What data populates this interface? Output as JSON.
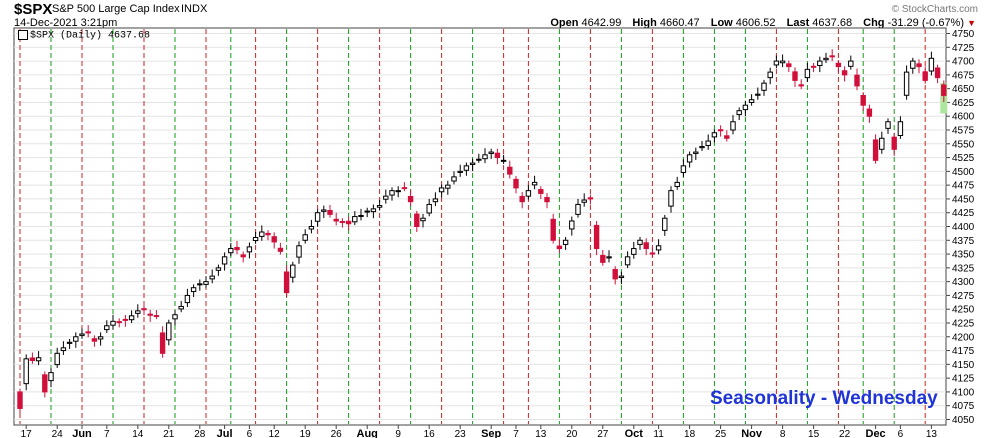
{
  "header": {
    "symbol": "$SPX",
    "name": "S&P 500 Large Cap Index",
    "exchange": "INDX",
    "datetime": "14-Dec-2021 3:21pm",
    "logo": "© StockCharts.com",
    "open_label": "Open",
    "open": "4642.99",
    "high_label": "High",
    "high": "4660.47",
    "low_label": "Low",
    "low": "4606.52",
    "last_label": "Last",
    "last": "4637.68",
    "chg_label": "Chg",
    "chg": "-31.29 (-0.67%)",
    "chg_arrow": "▼"
  },
  "legend": "$SPX (Daily) 4637.68",
  "annotation": "Seasonality - Wednesday",
  "colors": {
    "up": "#000000",
    "down": "#d0103a",
    "green_line": "#1a9a1a",
    "red_line": "#cc2222",
    "grid": "#e4e4e4",
    "highlight": "#aee6a0",
    "annotation": "#1f34d6"
  },
  "chart_data": {
    "type": "candlestick",
    "series_name": "$SPX (Daily)",
    "ylim": [
      4040,
      4760
    ],
    "y_ticks": [
      4050,
      4075,
      4100,
      4125,
      4150,
      4175,
      4200,
      4225,
      4250,
      4275,
      4300,
      4325,
      4350,
      4375,
      4400,
      4425,
      4450,
      4475,
      4500,
      4525,
      4550,
      4575,
      4600,
      4625,
      4650,
      4675,
      4700,
      4725,
      4750
    ],
    "x_ticks": [
      {
        "i": 1,
        "label": "17"
      },
      {
        "i": 6,
        "label": "24"
      },
      {
        "i": 10,
        "label": "Jun"
      },
      {
        "i": 14,
        "label": "7"
      },
      {
        "i": 19,
        "label": "14"
      },
      {
        "i": 24,
        "label": "21"
      },
      {
        "i": 29,
        "label": "28"
      },
      {
        "i": 33,
        "label": "Jul"
      },
      {
        "i": 37,
        "label": "6"
      },
      {
        "i": 41,
        "label": "12"
      },
      {
        "i": 46,
        "label": "19"
      },
      {
        "i": 51,
        "label": "26"
      },
      {
        "i": 56,
        "label": "Aug"
      },
      {
        "i": 61,
        "label": "9"
      },
      {
        "i": 66,
        "label": "16"
      },
      {
        "i": 71,
        "label": "23"
      },
      {
        "i": 76,
        "label": "Sep"
      },
      {
        "i": 80,
        "label": "7"
      },
      {
        "i": 84,
        "label": "13"
      },
      {
        "i": 89,
        "label": "20"
      },
      {
        "i": 94,
        "label": "27"
      },
      {
        "i": 99,
        "label": "Oct"
      },
      {
        "i": 103,
        "label": "11"
      },
      {
        "i": 108,
        "label": "18"
      },
      {
        "i": 113,
        "label": "25"
      },
      {
        "i": 118,
        "label": "Nov"
      },
      {
        "i": 123,
        "label": "8"
      },
      {
        "i": 128,
        "label": "15"
      },
      {
        "i": 133,
        "label": "22"
      },
      {
        "i": 138,
        "label": "Dec"
      },
      {
        "i": 142,
        "label": "6"
      },
      {
        "i": 147,
        "label": "13"
      }
    ],
    "wednesday_lines": [
      {
        "i": 0,
        "color": "red"
      },
      {
        "i": 5,
        "color": "green"
      },
      {
        "i": 10,
        "color": "red"
      },
      {
        "i": 15,
        "color": "green"
      },
      {
        "i": 20,
        "color": "red"
      },
      {
        "i": 25,
        "color": "green"
      },
      {
        "i": 30,
        "color": "red"
      },
      {
        "i": 34,
        "color": "green"
      },
      {
        "i": 38,
        "color": "red"
      },
      {
        "i": 43,
        "color": "green"
      },
      {
        "i": 48,
        "color": "red"
      },
      {
        "i": 53,
        "color": "green"
      },
      {
        "i": 58,
        "color": "red"
      },
      {
        "i": 63,
        "color": "green"
      },
      {
        "i": 68,
        "color": "red"
      },
      {
        "i": 73,
        "color": "green"
      },
      {
        "i": 78,
        "color": "red"
      },
      {
        "i": 82,
        "color": "red"
      },
      {
        "i": 87,
        "color": "green"
      },
      {
        "i": 92,
        "color": "red"
      },
      {
        "i": 97,
        "color": "green"
      },
      {
        "i": 102,
        "color": "red"
      },
      {
        "i": 107,
        "color": "green"
      },
      {
        "i": 112,
        "color": "green"
      },
      {
        "i": 117,
        "color": "green"
      },
      {
        "i": 122,
        "color": "red"
      },
      {
        "i": 127,
        "color": "green"
      },
      {
        "i": 132,
        "color": "red"
      },
      {
        "i": 136,
        "color": "green"
      },
      {
        "i": 141,
        "color": "green"
      },
      {
        "i": 146,
        "color": "red"
      }
    ],
    "highlight_index": 149,
    "closes": [
      4070,
      4160,
      4157,
      4162,
      4100,
      4135,
      4170,
      4180,
      4190,
      4200,
      4205,
      4207,
      4192,
      4200,
      4220,
      4228,
      4227,
      4230,
      4238,
      4247,
      4249,
      4239,
      4238,
      4170,
      4225,
      4240,
      4255,
      4275,
      4289,
      4296,
      4300,
      4310,
      4325,
      4345,
      4360,
      4358,
      4345,
      4363,
      4380,
      4390,
      4385,
      4372,
      4355,
      4280,
      4330,
      4365,
      4385,
      4400,
      4425,
      4430,
      4422,
      4410,
      4408,
      4405,
      4418,
      4420,
      4428,
      4432,
      4438,
      4455,
      4465,
      4465,
      4470,
      4445,
      4400,
      4415,
      4440,
      4450,
      4470,
      4475,
      4490,
      4500,
      4510,
      4515,
      4522,
      4530,
      4535,
      4525,
      4520,
      4495,
      4470,
      4445,
      4465,
      4480,
      4460,
      4445,
      4375,
      4360,
      4375,
      4410,
      4440,
      4448,
      4450,
      4360,
      4335,
      4345,
      4305,
      4310,
      4345,
      4360,
      4375,
      4360,
      4350,
      4365,
      4415,
      4465,
      4480,
      4510,
      4530,
      4535,
      4545,
      4555,
      4570,
      4575,
      4560,
      4590,
      4610,
      4620,
      4630,
      4640,
      4660,
      4680,
      4700,
      4700,
      4690,
      4665,
      4655,
      4685,
      4690,
      4700,
      4705,
      4708,
      4690,
      4675,
      4700,
      4655,
      4620,
      4600,
      4520,
      4560,
      4590,
      4540,
      4590,
      4680,
      4700,
      4690,
      4665,
      4705,
      4670,
      4637.68
    ]
  }
}
